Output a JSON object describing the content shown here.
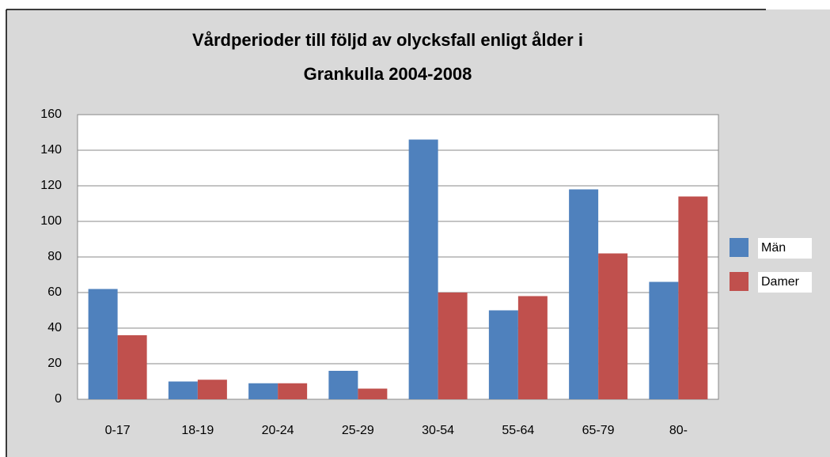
{
  "chart_data": {
    "type": "bar",
    "title": [
      "Vårdperioder till följd av olycksfall enligt ålder i",
      "Grankulla 2004-2008"
    ],
    "categories": [
      "0-17",
      "18-19",
      "20-24",
      "25-29",
      "30-54",
      "55-64",
      "65-79",
      "80-"
    ],
    "series": [
      {
        "name": "Män",
        "color": "#4f81bd",
        "values": [
          62,
          10,
          9,
          16,
          146,
          50,
          118,
          66
        ]
      },
      {
        "name": "Damer",
        "color": "#c0504d",
        "values": [
          36,
          11,
          9,
          6,
          60,
          58,
          82,
          114
        ]
      }
    ],
    "ylim": [
      0,
      160
    ],
    "yticks": [
      0,
      20,
      40,
      60,
      80,
      100,
      120,
      140,
      160
    ],
    "grid": true,
    "legend": "right"
  }
}
